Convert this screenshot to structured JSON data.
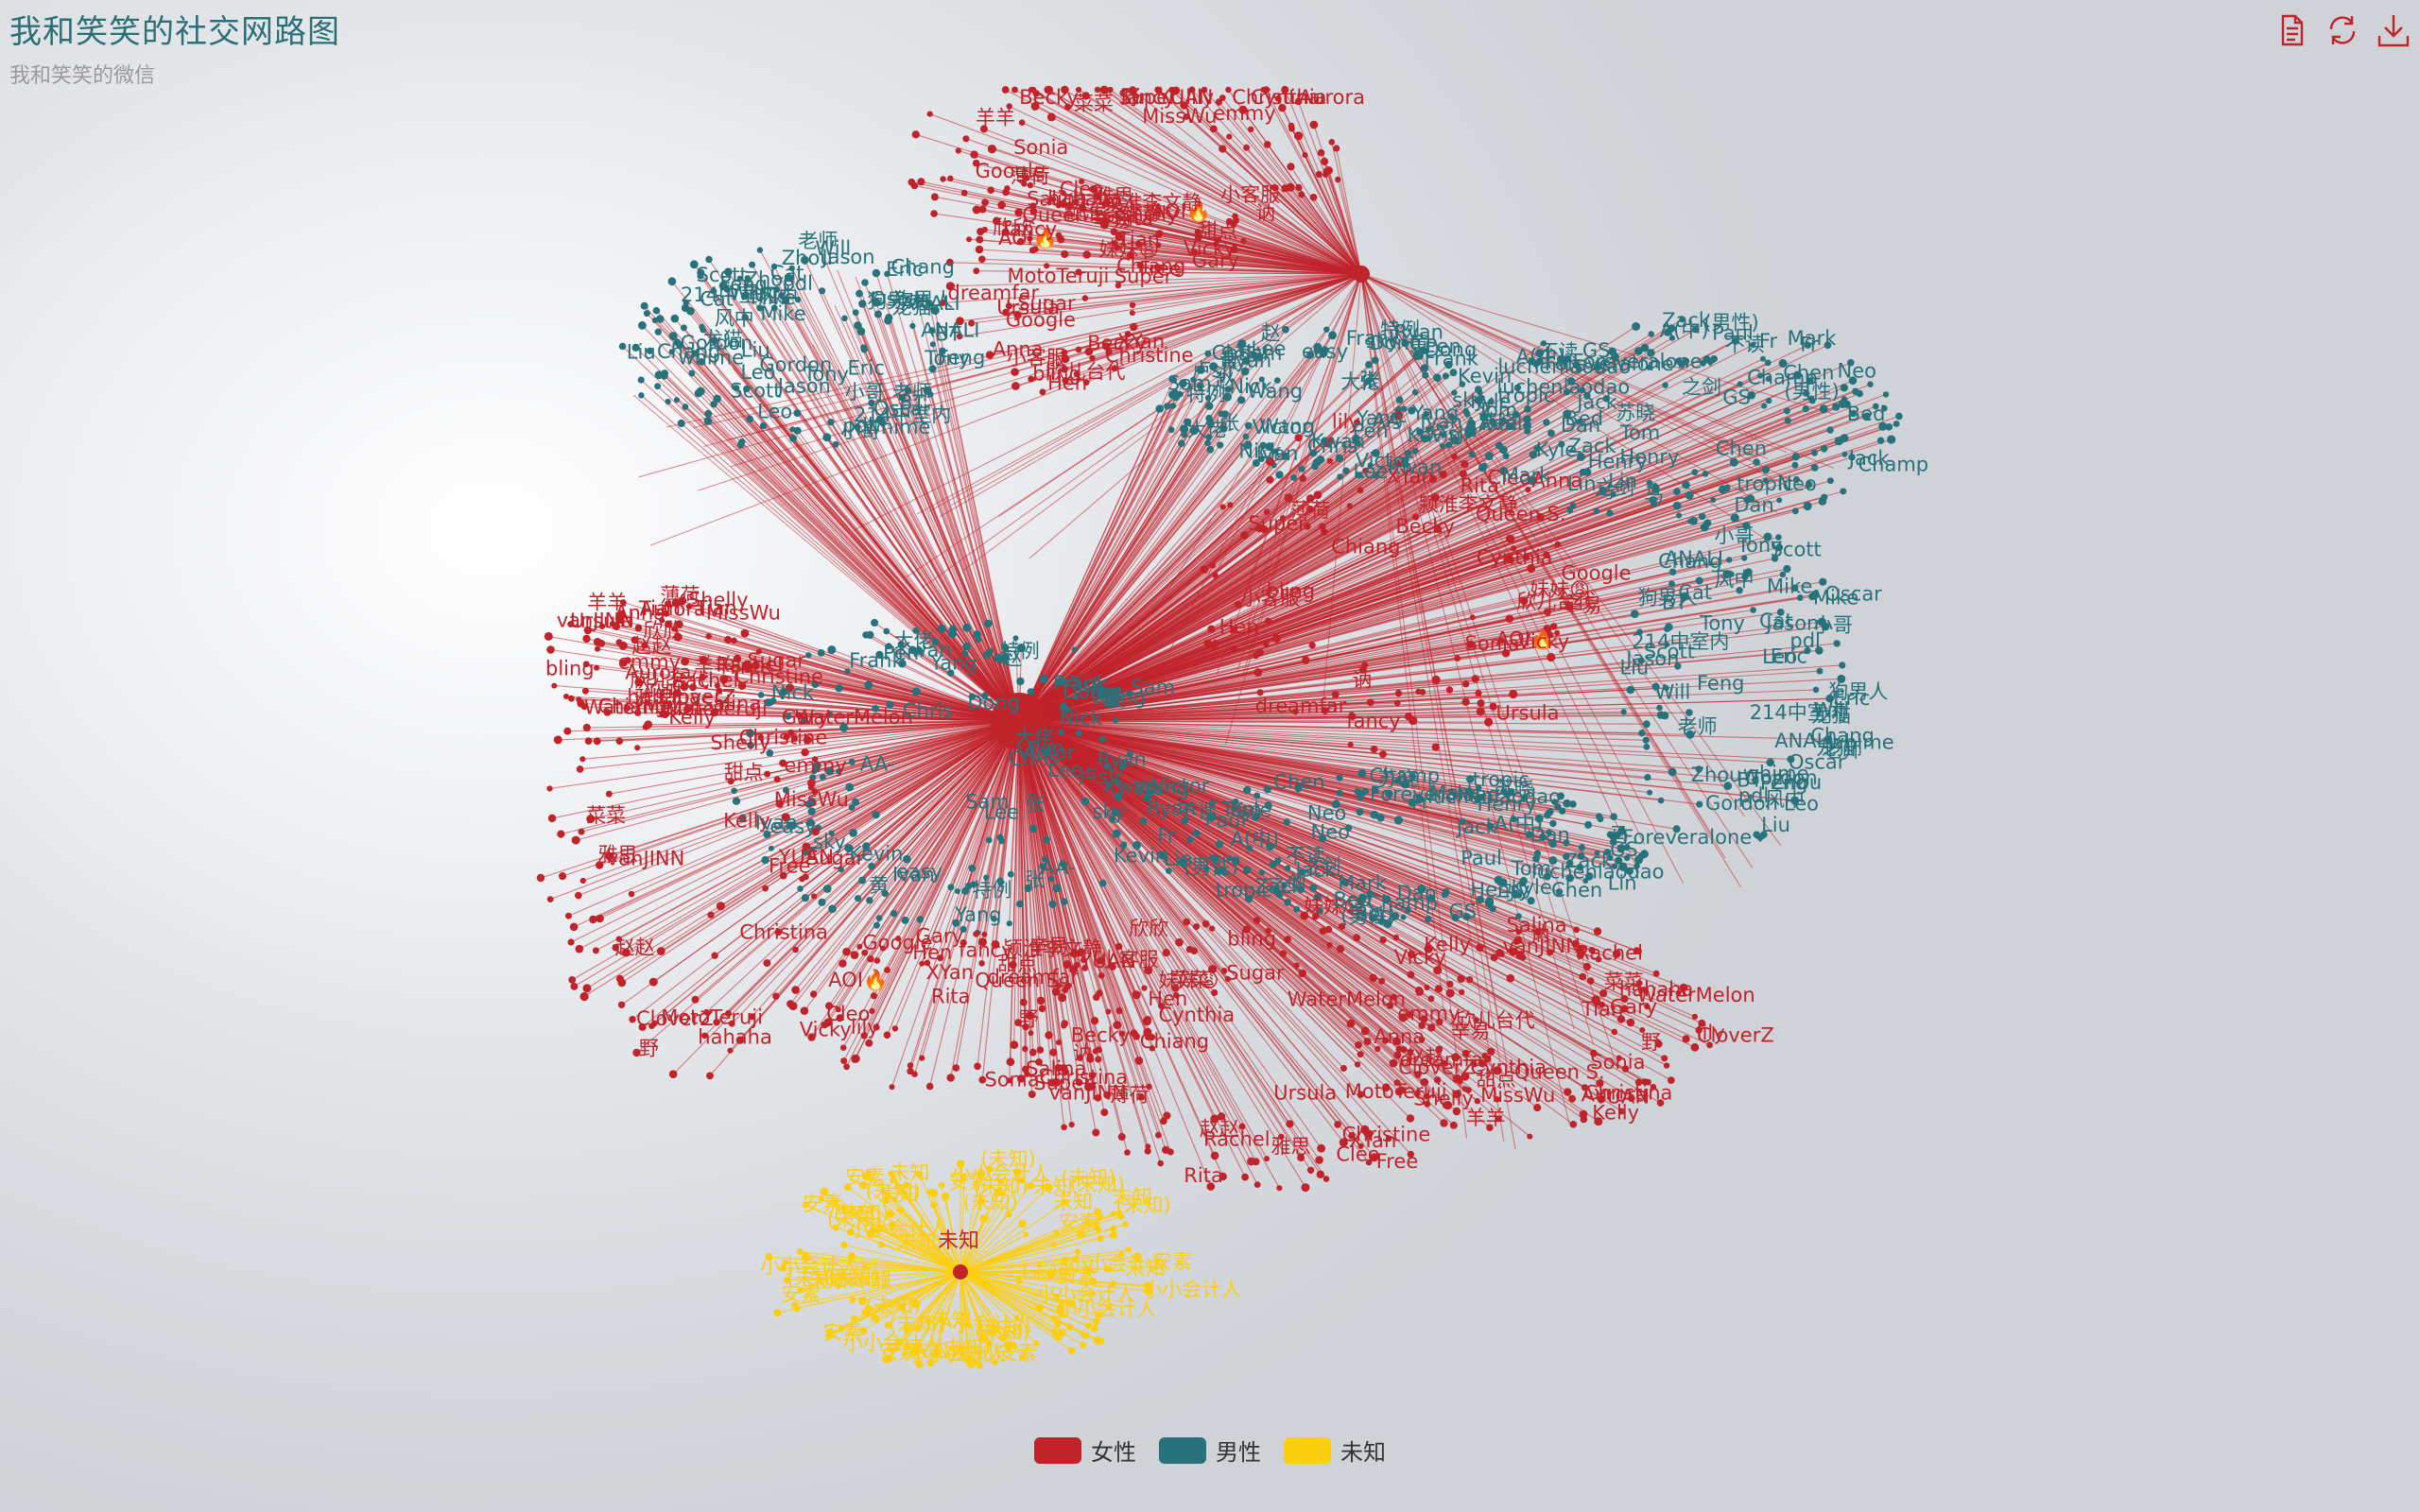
{
  "title": "我和笑笑的社交网路图",
  "subtitle": "我和笑笑的微信",
  "toolbox": [
    "data-view-icon",
    "restore-icon",
    "save-image-icon"
  ],
  "colors": {
    "female": "#c1232b",
    "male": "#27727b",
    "unknown": "#fcce10",
    "toolbox": "#c1232b"
  },
  "chart_data": {
    "type": "graph",
    "layout": "force",
    "categories": [
      "女性",
      "男性",
      "未知"
    ],
    "legend": {
      "position": "bottom",
      "items": [
        "女性",
        "男性",
        "未知"
      ]
    },
    "hubs": [
      {
        "name": "",
        "category": "女性",
        "role": "center"
      },
      {
        "name": "",
        "category": "女性",
        "role": "hub-top"
      },
      {
        "name": "未知",
        "category": "未知",
        "role": "hub-unknown"
      }
    ],
    "labels": {
      "女性": [
        "颍淮李文静",
        "雅思",
        "野",
        "辛易",
        "赵赵",
        "讷",
        "薄荷",
        "MissWu",
        "AOI🔥",
        "Sugar",
        "甜点",
        "dreamfar",
        "vanJINN",
        "lily",
        "bling",
        "emmy",
        "fancy",
        "MotoTeruji",
        "YUAN",
        "XYan",
        "WaterMelon",
        "Vicky",
        "Ursula",
        "Tian",
        "Super",
        "Shelly",
        "Salina",
        "Rita",
        "Rachel",
        "Queen S.",
        "Chiang",
        "Aurora",
        "Becky",
        "Christine",
        "Christina",
        "Cleo",
        "CloverZ",
        "Cynthia",
        "欣儿台代",
        "羊羊",
        "Google",
        "Free",
        "Gary",
        "Hen",
        "Kelly",
        "Sonia",
        "Anna",
        "hahaha",
        "小客服",
        "欣欣",
        "菜菜",
        "妹妹😩"
      ],
      "男性": [
        "风中",
        "马",
        "黄",
        "龙猫",
        "Fr",
        "卢sJr",
        "214中室内",
        "A(中)",
        "AA-",
        "ANALI",
        "不读",
        "easy",
        "狗男人",
        "之剑",
        "赵",
        "老师",
        "❤Foreveralone❤",
        "张",
        "whime",
        "tropic",
        "sky",
        "pdl",
        "luchenlaodao",
        "Kwan",
        "BT",
        "Bed",
        "特例",
        "Cat",
        "Champ",
        "Chris",
        "Chang",
        "Dan",
        "Dong",
        "Eric",
        "GS",
        "Pen",
        "Feng",
        "Jack",
        "Kevin",
        "Leo",
        "Mark",
        "Nick",
        "Oscar",
        "Paul",
        "Sam",
        "Tony",
        "(男性)",
        "大佬",
        "小哥",
        "苏晓",
        "Frank",
        "Gordon",
        "Henry",
        "Ivan",
        "Jason",
        "Kyle",
        "Lee",
        "Mike",
        "Neo",
        "Ryan",
        "Scott",
        "Tom",
        "Victor",
        "Will",
        "Zack",
        "Yang",
        "Zhou",
        "Lin",
        "Wang",
        "Liu",
        "Chen"
      ],
      "未知": [
        "小小会计人",
        "安素",
        "未知",
        "(未知)",
        "(未知)"
      ]
    }
  }
}
